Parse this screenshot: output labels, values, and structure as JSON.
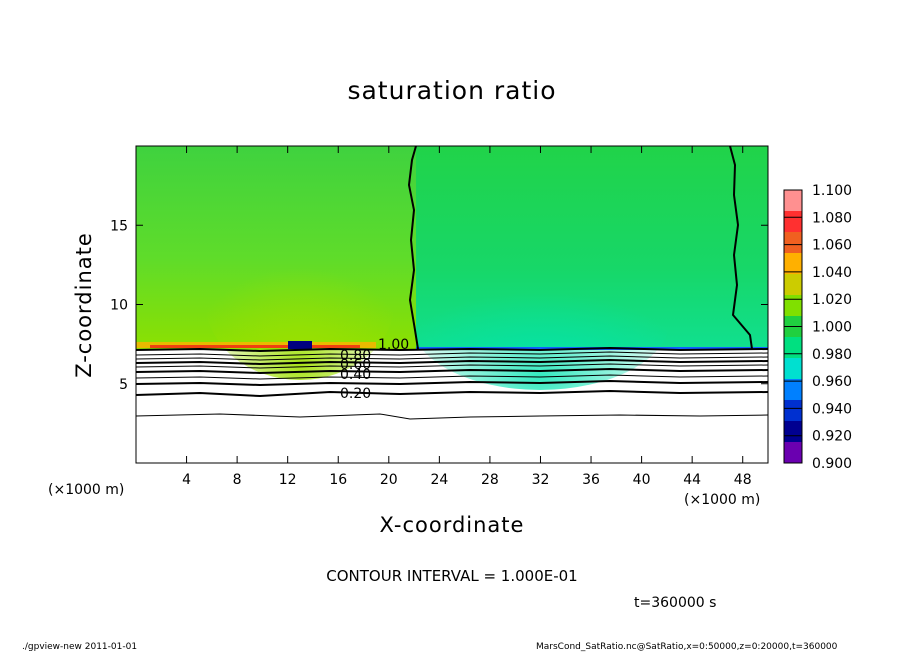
{
  "chart_data": {
    "type": "heatmap",
    "title": "saturation ratio",
    "xlabel": "X-coordinate",
    "ylabel": "Z-coordinate",
    "x_unit": "(×1000 m)",
    "z_unit": "(×1000 m)",
    "xlim": [
      0,
      50
    ],
    "zlim": [
      0,
      20
    ],
    "x_ticks": [
      4,
      8,
      12,
      16,
      20,
      24,
      28,
      32,
      36,
      40,
      44,
      48
    ],
    "z_ticks": [
      5,
      10,
      15
    ],
    "colorbar": {
      "levels": [
        "1.100",
        "1.080",
        "1.060",
        "1.040",
        "1.020",
        "1.000",
        "0.980",
        "0.960",
        "0.940",
        "0.920",
        "0.900"
      ],
      "colors": [
        "#ff9090",
        "#ff3030",
        "#f06020",
        "#ffb000",
        "#cccc00",
        "#80e000",
        "#20d040",
        "#00e080",
        "#00e0d0",
        "#0080ff",
        "#0030d0",
        "#000090",
        "#6a00b0"
      ]
    },
    "contour_labels": [
      "1.00",
      "0.80",
      "0.60",
      "0.40",
      "0.20"
    ],
    "contour_interval": "CONTOUR INTERVAL = 1.000E-01",
    "time": "t=360000 s"
  },
  "footer": {
    "left": "./gpview-new   2011-01-01",
    "right": "MarsCond_SatRatio.nc@SatRatio,x=0:50000,z=0:20000,t=360000"
  }
}
